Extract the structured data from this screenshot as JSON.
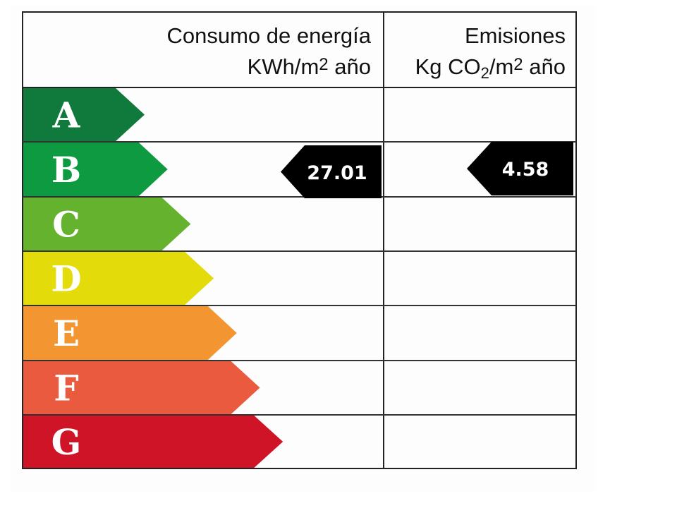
{
  "header": {
    "energy_title": "Consumo de energía",
    "energy_unit_prefix": "KWh/m",
    "energy_unit_sup": "2",
    "energy_unit_suffix": " año",
    "emissions_title": "Emisiones",
    "emissions_unit_a": "Kg CO",
    "emissions_unit_sub": "2",
    "emissions_unit_b": "/m",
    "emissions_unit_sup": "2",
    "emissions_unit_c": " año"
  },
  "classes": [
    {
      "letter": "A",
      "color": "#0f7a3c"
    },
    {
      "letter": "B",
      "color": "#0e9a40"
    },
    {
      "letter": "C",
      "color": "#64b22e"
    },
    {
      "letter": "D",
      "color": "#e3db0a"
    },
    {
      "letter": "E",
      "color": "#f39631"
    },
    {
      "letter": "F",
      "color": "#e95a3f"
    },
    {
      "letter": "G",
      "color": "#ce1426"
    }
  ],
  "energy_rating": {
    "class": "B",
    "value": "27.01"
  },
  "emissions_rating": {
    "class": "B",
    "value": "4.58"
  }
}
